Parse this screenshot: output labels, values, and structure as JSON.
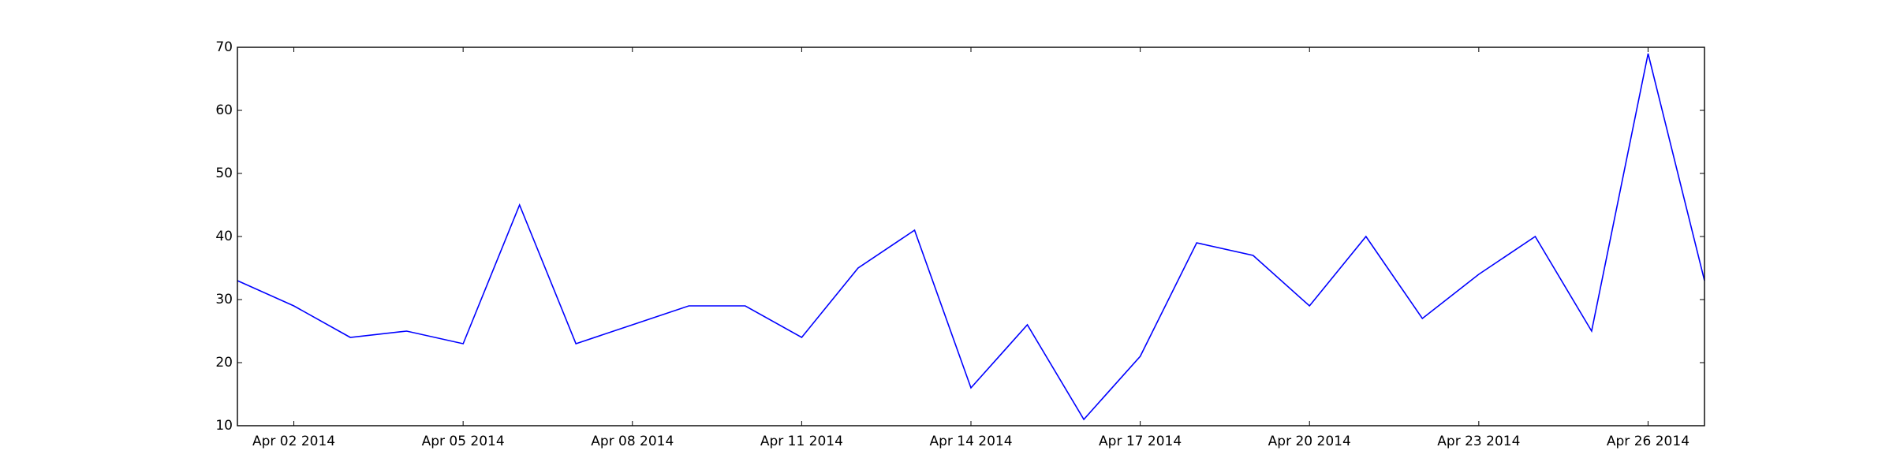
{
  "chart_data": {
    "type": "line",
    "title": "",
    "xlabel": "",
    "ylabel": "",
    "x": [
      "2014-04-01",
      "2014-04-02",
      "2014-04-03",
      "2014-04-04",
      "2014-04-05",
      "2014-04-06",
      "2014-04-07",
      "2014-04-08",
      "2014-04-09",
      "2014-04-10",
      "2014-04-11",
      "2014-04-12",
      "2014-04-13",
      "2014-04-14",
      "2014-04-15",
      "2014-04-16",
      "2014-04-17",
      "2014-04-18",
      "2014-04-19",
      "2014-04-20",
      "2014-04-21",
      "2014-04-22",
      "2014-04-23",
      "2014-04-24",
      "2014-04-25",
      "2014-04-26",
      "2014-04-27"
    ],
    "series": [
      {
        "values": [
          33,
          29,
          24,
          25,
          23,
          45,
          23,
          26,
          29,
          29,
          24,
          35,
          41,
          16,
          26,
          11,
          21,
          39,
          37,
          29,
          40,
          27,
          34,
          40,
          25,
          69,
          33
        ]
      }
    ],
    "xlim": [
      "2014-04-01",
      "2014-04-27"
    ],
    "ylim": [
      10,
      70
    ],
    "x_ticks": [
      {
        "date": "2014-04-02",
        "label": "Apr 02 2014"
      },
      {
        "date": "2014-04-05",
        "label": "Apr 05 2014"
      },
      {
        "date": "2014-04-08",
        "label": "Apr 08 2014"
      },
      {
        "date": "2014-04-11",
        "label": "Apr 11 2014"
      },
      {
        "date": "2014-04-14",
        "label": "Apr 14 2014"
      },
      {
        "date": "2014-04-17",
        "label": "Apr 17 2014"
      },
      {
        "date": "2014-04-20",
        "label": "Apr 20 2014"
      },
      {
        "date": "2014-04-23",
        "label": "Apr 23 2014"
      },
      {
        "date": "2014-04-26",
        "label": "Apr 26 2014"
      }
    ],
    "y_ticks": [
      {
        "value": 10,
        "label": "10"
      },
      {
        "value": 20,
        "label": "20"
      },
      {
        "value": 30,
        "label": "30"
      },
      {
        "value": 40,
        "label": "40"
      },
      {
        "value": 50,
        "label": "50"
      },
      {
        "value": 60,
        "label": "60"
      },
      {
        "value": 70,
        "label": "70"
      }
    ],
    "grid": false,
    "colors": {
      "line": "#0000ff",
      "axes": "#000000",
      "background": "#ffffff"
    }
  }
}
